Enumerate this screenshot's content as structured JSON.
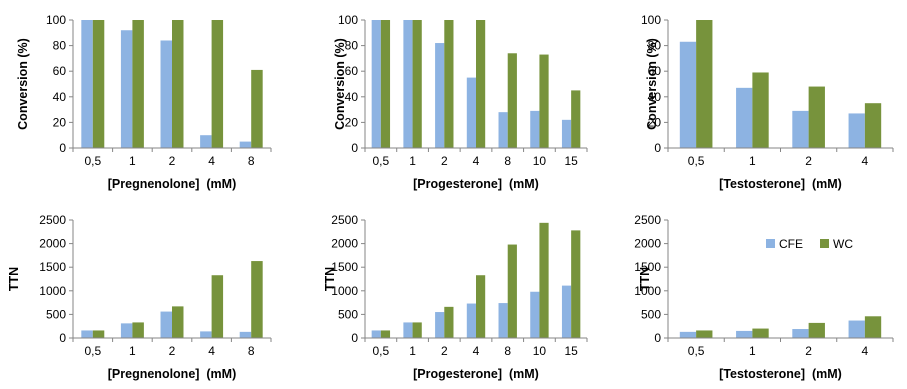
{
  "colors": {
    "cfe": "#8DB3E2",
    "wc": "#77933C",
    "axis": "#868686"
  },
  "legend": [
    {
      "name": "CFE",
      "color": "#8DB3E2"
    },
    {
      "name": "WC",
      "color": "#77933C"
    }
  ],
  "chart_data": [
    {
      "type": "bar",
      "categories": [
        "0,5",
        "1",
        "2",
        "4",
        "8"
      ],
      "series": [
        {
          "name": "CFE",
          "values": [
            100,
            92,
            84,
            10,
            5
          ]
        },
        {
          "name": "WC",
          "values": [
            100,
            100,
            100,
            100,
            61
          ]
        }
      ],
      "xlabel": "[Pregnenolone]  (mM)",
      "ylabel": "Conversion (%)",
      "ylim": [
        0,
        100
      ],
      "yticks": [
        0,
        20,
        40,
        60,
        80,
        100
      ],
      "grid": false
    },
    {
      "type": "bar",
      "categories": [
        "0,5",
        "1",
        "2",
        "4",
        "8",
        "10",
        "15"
      ],
      "series": [
        {
          "name": "CFE",
          "values": [
            100,
            100,
            82,
            55,
            28,
            29,
            22
          ]
        },
        {
          "name": "WC",
          "values": [
            100,
            100,
            100,
            100,
            74,
            73,
            45
          ]
        }
      ],
      "xlabel": "[Progesterone]  (mM)",
      "ylabel": "Conversion (%)",
      "ylim": [
        0,
        100
      ],
      "yticks": [
        0,
        20,
        40,
        60,
        80,
        100
      ],
      "grid": false
    },
    {
      "type": "bar",
      "categories": [
        "0,5",
        "1",
        "2",
        "4"
      ],
      "series": [
        {
          "name": "CFE",
          "values": [
            83,
            47,
            29,
            27
          ]
        },
        {
          "name": "WC",
          "values": [
            100,
            59,
            48,
            35
          ]
        }
      ],
      "xlabel": "[Testosterone]  (mM)",
      "ylabel": "Conversion (%)",
      "ylim": [
        0,
        100
      ],
      "yticks": [
        0,
        20,
        40,
        60,
        80,
        100
      ],
      "grid": false
    },
    {
      "type": "bar",
      "categories": [
        "0,5",
        "1",
        "2",
        "4",
        "8"
      ],
      "series": [
        {
          "name": "CFE",
          "values": [
            160,
            310,
            560,
            140,
            130
          ]
        },
        {
          "name": "WC",
          "values": [
            160,
            330,
            670,
            1330,
            1630
          ]
        }
      ],
      "xlabel": "[Pregnenolone]  (mM)",
      "ylabel": "TTN",
      "ylim": [
        0,
        2500
      ],
      "yticks": [
        0,
        500,
        1000,
        1500,
        2000,
        2500
      ],
      "grid": false
    },
    {
      "type": "bar",
      "categories": [
        "0,5",
        "1",
        "2",
        "4",
        "8",
        "10",
        "15"
      ],
      "series": [
        {
          "name": "CFE",
          "values": [
            160,
            330,
            550,
            730,
            740,
            980,
            1110
          ]
        },
        {
          "name": "WC",
          "values": [
            160,
            330,
            660,
            1330,
            1980,
            2440,
            2280
          ]
        }
      ],
      "xlabel": "[Progesterone]  (mM)",
      "ylabel": "TTN",
      "ylim": [
        0,
        2500
      ],
      "yticks": [
        0,
        500,
        1000,
        1500,
        2000,
        2500
      ],
      "grid": false
    },
    {
      "type": "bar",
      "categories": [
        "0,5",
        "1",
        "2",
        "4"
      ],
      "series": [
        {
          "name": "CFE",
          "values": [
            130,
            150,
            190,
            370
          ]
        },
        {
          "name": "WC",
          "values": [
            160,
            200,
            320,
            460
          ]
        }
      ],
      "xlabel": "[Testosterone]  (mM)",
      "ylabel": "TTN",
      "ylim": [
        0,
        2500
      ],
      "yticks": [
        0,
        500,
        1000,
        1500,
        2000,
        2500
      ],
      "grid": false,
      "legend": "top-right"
    }
  ]
}
